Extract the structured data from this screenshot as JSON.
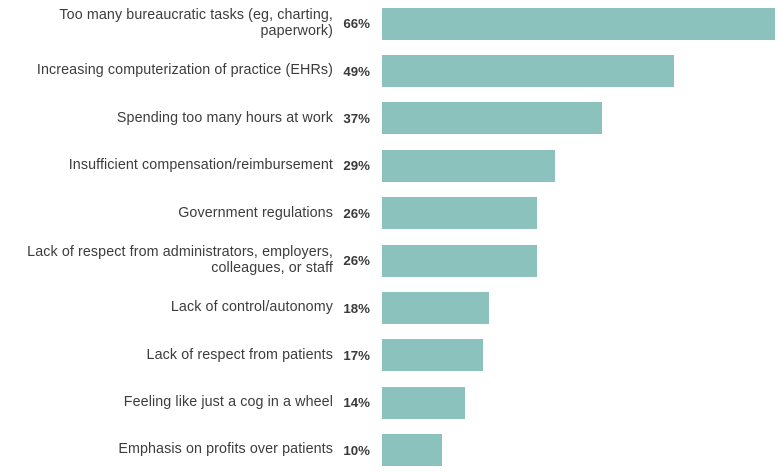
{
  "chart_data": {
    "type": "bar",
    "orientation": "horizontal",
    "title": "",
    "xlabel": "",
    "ylabel": "",
    "grid": false,
    "legend": false,
    "xlim": [
      0,
      66.5
    ],
    "bar_color": "#8cc2be",
    "text_color": "#3c3c3c",
    "categories": [
      "Too many bureaucratic tasks (eg, charting, paperwork)",
      "Increasing computerization of practice (EHRs)",
      "Spending too many hours at work",
      "Insufficient compensation/reimbursement",
      "Government regulations",
      "Lack of respect from administrators, employers, colleagues, or staff",
      "Lack of control/autonomy",
      "Lack of respect from patients",
      "Feeling like just a cog in a wheel",
      "Emphasis on profits over patients"
    ],
    "values": [
      66,
      49,
      37,
      29,
      26,
      26,
      18,
      17,
      14,
      10
    ],
    "value_labels": [
      "66%",
      "49%",
      "37%",
      "29%",
      "26%",
      "26%",
      "18%",
      "17%",
      "14%",
      "10%"
    ]
  }
}
